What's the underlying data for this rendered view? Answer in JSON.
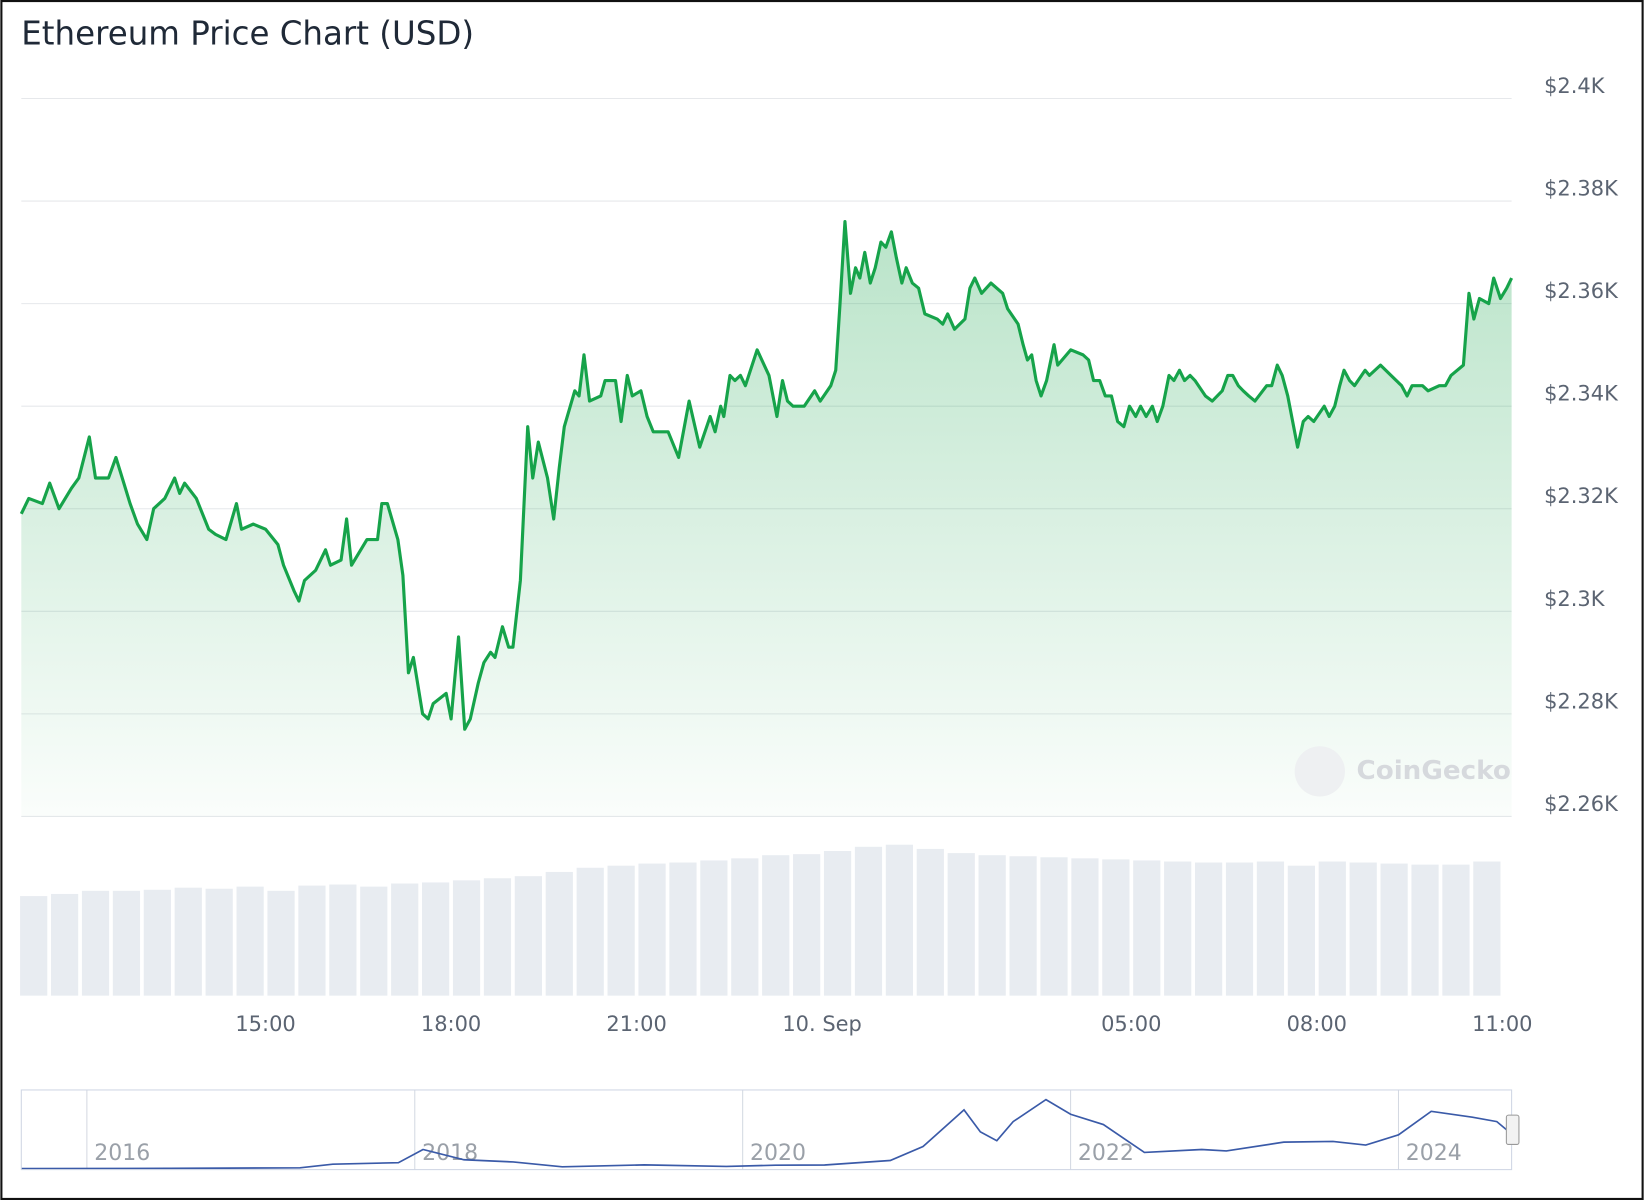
{
  "chart_data": [
    {
      "type": "area",
      "title": "Ethereum Price Chart (USD)",
      "watermark": "CoinGecko",
      "color": "#16a34a",
      "grid": true,
      "xlim": [
        11.05,
        35.15
      ],
      "xticks": [
        {
          "value": 15,
          "label": "15:00"
        },
        {
          "value": 18,
          "label": "18:00"
        },
        {
          "value": 21,
          "label": "21:00"
        },
        {
          "value": 24,
          "label": "10. Sep"
        },
        {
          "value": 29,
          "label": "05:00"
        },
        {
          "value": 32,
          "label": "08:00"
        },
        {
          "value": 35,
          "label": "11:00"
        }
      ],
      "ylim": [
        2260,
        2400
      ],
      "yticks": [
        {
          "value": 2260,
          "label": "$2.26K"
        },
        {
          "value": 2280,
          "label": "$2.28K"
        },
        {
          "value": 2300,
          "label": "$2.3K"
        },
        {
          "value": 2320,
          "label": "$2.32K"
        },
        {
          "value": 2340,
          "label": "$2.34K"
        },
        {
          "value": 2360,
          "label": "$2.36K"
        },
        {
          "value": 2380,
          "label": "$2.38K"
        },
        {
          "value": 2400,
          "label": "$2.4K"
        }
      ],
      "x": [
        11.05,
        11.17,
        11.39,
        11.51,
        11.66,
        11.86,
        11.98,
        12.15,
        12.25,
        12.46,
        12.58,
        12.81,
        12.93,
        13.08,
        13.19,
        13.37,
        13.53,
        13.61,
        13.69,
        13.88,
        14.08,
        14.19,
        14.36,
        14.53,
        14.61,
        14.8,
        15.0,
        15.2,
        15.29,
        15.46,
        15.54,
        15.63,
        15.81,
        15.97,
        16.05,
        16.22,
        16.31,
        16.39,
        16.64,
        16.81,
        16.88,
        16.97,
        17.14,
        17.22,
        17.31,
        17.39,
        17.54,
        17.63,
        17.71,
        17.92,
        18.0,
        18.12,
        18.22,
        18.31,
        18.44,
        18.53,
        18.64,
        18.71,
        18.83,
        18.93,
        19.0,
        19.12,
        19.24,
        19.32,
        19.41,
        19.56,
        19.66,
        19.75,
        19.83,
        20.0,
        20.07,
        20.15,
        20.24,
        20.42,
        20.49,
        20.66,
        20.75,
        20.85,
        20.93,
        21.07,
        21.17,
        21.27,
        21.51,
        21.68,
        21.85,
        22.02,
        22.19,
        22.27,
        22.36,
        22.41,
        22.51,
        22.59,
        22.68,
        22.76,
        22.95,
        23.14,
        23.27,
        23.36,
        23.44,
        23.53,
        23.71,
        23.88,
        23.97,
        24.14,
        24.22,
        24.29,
        24.37,
        24.46,
        24.54,
        24.61,
        24.69,
        24.78,
        24.86,
        24.95,
        25.03,
        25.12,
        25.2,
        25.29,
        25.36,
        25.46,
        25.56,
        25.66,
        25.86,
        25.95,
        26.03,
        26.14,
        26.31,
        26.39,
        26.47,
        26.58,
        26.73,
        26.92,
        27.0,
        27.17,
        27.25,
        27.32,
        27.39,
        27.46,
        27.54,
        27.63,
        27.75,
        27.81,
        28.02,
        28.22,
        28.31,
        28.39,
        28.49,
        28.58,
        28.68,
        28.78,
        28.88,
        28.97,
        29.07,
        29.15,
        29.24,
        29.34,
        29.42,
        29.51,
        29.61,
        29.69,
        29.78,
        29.86,
        29.95,
        30.03,
        30.2,
        30.31,
        30.47,
        30.56,
        30.64,
        30.73,
        30.81,
        30.9,
        31.0,
        31.19,
        31.27,
        31.36,
        31.44,
        31.53,
        31.61,
        31.69,
        31.78,
        31.86,
        31.95,
        32.12,
        32.2,
        32.29,
        32.37,
        32.44,
        32.53,
        32.61,
        32.78,
        32.85,
        33.03,
        33.2,
        33.37,
        33.46,
        33.54,
        33.71,
        33.8,
        33.98,
        34.08,
        34.17,
        34.37,
        34.46,
        34.54,
        34.63,
        34.78,
        34.86,
        34.97,
        35.07,
        35.15
      ],
      "values": [
        2319,
        2322,
        2321,
        2325,
        2320,
        2324,
        2326,
        2334,
        2326,
        2326,
        2330,
        2321,
        2317,
        2314,
        2320,
        2322,
        2326,
        2323,
        2325,
        2322,
        2316,
        2315,
        2314,
        2321,
        2316,
        2317,
        2316,
        2313,
        2309,
        2304,
        2302,
        2306,
        2308,
        2312,
        2309,
        2310,
        2318,
        2309,
        2314,
        2314,
        2321,
        2321,
        2314,
        2307,
        2288,
        2291,
        2280,
        2279,
        2282,
        2284,
        2279,
        2295,
        2277,
        2279,
        2286,
        2290,
        2292,
        2291,
        2297,
        2293,
        2293,
        2306,
        2336,
        2326,
        2333,
        2326,
        2318,
        2328,
        2336,
        2343,
        2342,
        2350,
        2341,
        2342,
        2345,
        2345,
        2337,
        2346,
        2342,
        2343,
        2338,
        2335,
        2335,
        2330,
        2341,
        2332,
        2338,
        2335,
        2340,
        2338,
        2346,
        2345,
        2346,
        2344,
        2351,
        2346,
        2338,
        2345,
        2341,
        2340,
        2340,
        2343,
        2341,
        2344,
        2347,
        2360,
        2376,
        2362,
        2367,
        2365,
        2370,
        2364,
        2367,
        2372,
        2371,
        2374,
        2369,
        2364,
        2367,
        2364,
        2363,
        2358,
        2357,
        2356,
        2358,
        2355,
        2357,
        2363,
        2365,
        2362,
        2364,
        2362,
        2359,
        2356,
        2352,
        2349,
        2350,
        2345,
        2342,
        2345,
        2352,
        2348,
        2351,
        2350,
        2349,
        2345,
        2345,
        2342,
        2342,
        2337,
        2336,
        2340,
        2338,
        2340,
        2338,
        2340,
        2337,
        2340,
        2346,
        2345,
        2347,
        2345,
        2346,
        2345,
        2342,
        2341,
        2343,
        2346,
        2346,
        2344,
        2343,
        2342,
        2341,
        2344,
        2344,
        2348,
        2346,
        2342,
        2337,
        2332,
        2337,
        2338,
        2337,
        2340,
        2338,
        2340,
        2344,
        2347,
        2345,
        2344,
        2347,
        2346,
        2348,
        2346,
        2344,
        2342,
        2344,
        2344,
        2343,
        2344,
        2344,
        2346,
        2348,
        2362,
        2357,
        2361,
        2360,
        2365,
        2361,
        2363,
        2365
      ]
    },
    {
      "type": "bar",
      "color": "#e8ecf1",
      "ylim": [
        0,
        150
      ],
      "x": [
        11.25,
        11.75,
        12.25,
        12.75,
        13.25,
        13.75,
        14.25,
        14.75,
        15.25,
        15.75,
        16.25,
        16.75,
        17.25,
        17.75,
        18.25,
        18.75,
        19.25,
        19.75,
        20.25,
        20.75,
        21.25,
        21.75,
        22.25,
        22.75,
        23.25,
        23.75,
        24.25,
        24.75,
        25.25,
        25.75,
        26.25,
        26.75,
        27.25,
        27.75,
        28.25,
        28.75,
        29.25,
        29.75,
        30.25,
        30.75,
        31.25,
        31.75,
        32.25,
        32.75,
        33.25,
        33.75,
        34.25,
        34.75
      ],
      "values": [
        95,
        97,
        100,
        100,
        101,
        103,
        102,
        104,
        100,
        105,
        106,
        104,
        107,
        108,
        110,
        112,
        114,
        118,
        122,
        124,
        126,
        127,
        129,
        131,
        134,
        135,
        138,
        142,
        144,
        140,
        136,
        134,
        133,
        132,
        131,
        130,
        129,
        128,
        127,
        127,
        128,
        124,
        128,
        127,
        126,
        125,
        125,
        128
      ]
    },
    {
      "type": "line",
      "color": "#3a5aa8",
      "xlim": [
        2015.6,
        2024.69
      ],
      "ylim": [
        0,
        5000
      ],
      "xticks": [
        2016,
        2018,
        2020,
        2022,
        2024
      ],
      "x": [
        2015.6,
        2016.5,
        2017.3,
        2017.5,
        2017.9,
        2018.05,
        2018.3,
        2018.6,
        2018.9,
        2019.4,
        2019.9,
        2020.2,
        2020.5,
        2020.9,
        2021.1,
        2021.35,
        2021.45,
        2021.55,
        2021.65,
        2021.85,
        2022.0,
        2022.2,
        2022.45,
        2022.8,
        2022.95,
        2023.3,
        2023.6,
        2023.8,
        2024.0,
        2024.2,
        2024.45,
        2024.6,
        2024.69
      ],
      "values": [
        1,
        12,
        50,
        300,
        400,
        1300,
        600,
        450,
        120,
        250,
        140,
        230,
        240,
        550,
        1500,
        4000,
        2500,
        1900,
        3200,
        4700,
        3700,
        3000,
        1100,
        1300,
        1200,
        1800,
        1850,
        1600,
        2300,
        3900,
        3500,
        3200,
        2360
      ]
    }
  ]
}
